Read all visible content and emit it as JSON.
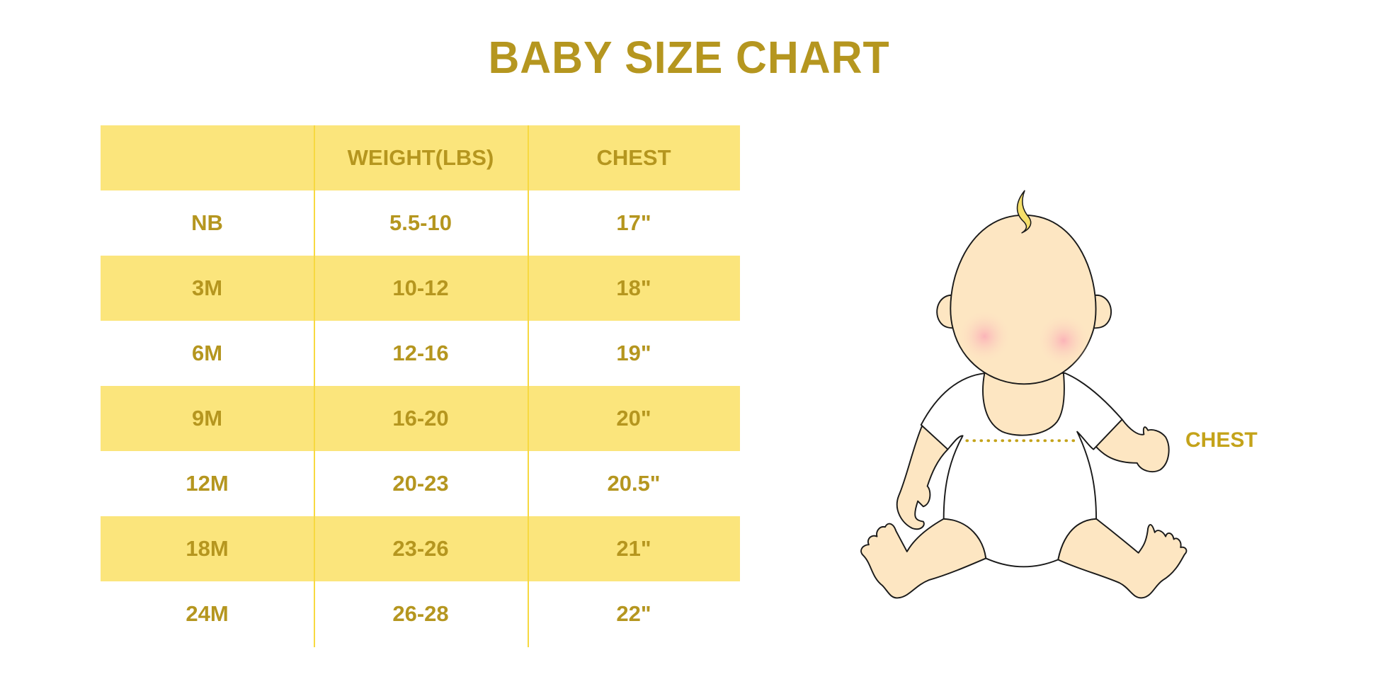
{
  "title": "BABY SIZE CHART",
  "table": {
    "headers": [
      "",
      "WEIGHT(LBS)",
      "CHEST"
    ],
    "rows": [
      [
        "NB",
        "5.5-10",
        "17\""
      ],
      [
        "3M",
        "10-12",
        "18\""
      ],
      [
        "6M",
        "12-16",
        "19\""
      ],
      [
        "9M",
        "16-20",
        "20\""
      ],
      [
        "12M",
        "20-23",
        "20.5\""
      ],
      [
        "18M",
        "23-26",
        "21\""
      ],
      [
        "24M",
        "26-28",
        "22\""
      ]
    ]
  },
  "illustration": {
    "chest_label": "CHEST"
  },
  "colors": {
    "text_gold": "#b5961f",
    "band_yellow": "#fbe57c",
    "skin": "#fde6c2",
    "divider": "#f7d940"
  }
}
